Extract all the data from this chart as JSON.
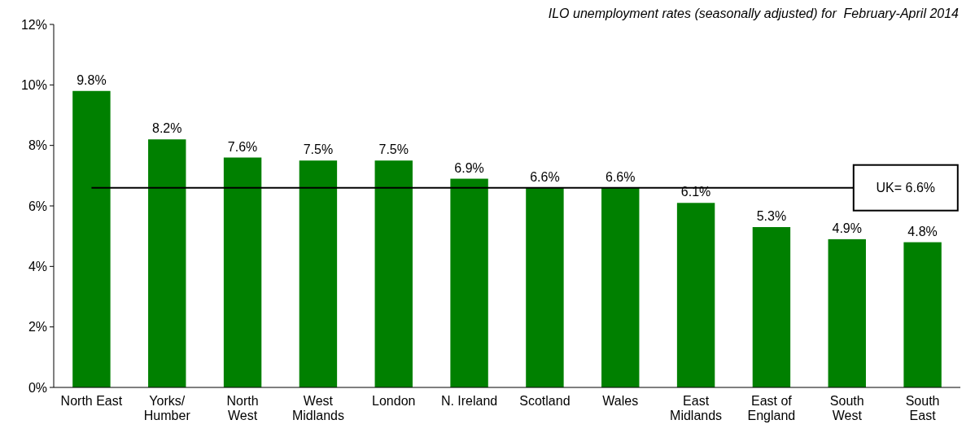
{
  "chart_data": {
    "type": "bar",
    "title": "ILO unemployment rates (seasonally adjusted) for  February-April 2014",
    "categories": [
      "North East",
      "Yorks/\nHumber",
      "North\nWest",
      "West\nMidlands",
      "London",
      "N. Ireland",
      "Scotland",
      "Wales",
      "East\nMidlands",
      "East of\nEngland",
      "South\nWest",
      "South\nEast"
    ],
    "values": [
      9.8,
      8.2,
      7.6,
      7.5,
      7.5,
      6.9,
      6.6,
      6.6,
      6.1,
      5.3,
      4.9,
      4.8
    ],
    "value_labels": [
      "9.8%",
      "8.2%",
      "7.6%",
      "7.5%",
      "7.5%",
      "6.9%",
      "6.6%",
      "6.6%",
      "6.1%",
      "5.3%",
      "4.9%",
      "4.8%"
    ],
    "color": "#008000",
    "ylim": [
      0,
      12
    ],
    "yticks": [
      {
        "value": 0,
        "label": "0%"
      },
      {
        "value": 2,
        "label": "2%"
      },
      {
        "value": 4,
        "label": "4%"
      },
      {
        "value": 6,
        "label": "6%"
      },
      {
        "value": 8,
        "label": "8%"
      },
      {
        "value": 10,
        "label": "10%"
      },
      {
        "value": 12,
        "label": "12%"
      }
    ],
    "ref_lines": [
      {
        "axis": "y",
        "value": 6.6,
        "label": "UK= 6.6%",
        "color": "#000000"
      }
    ]
  }
}
